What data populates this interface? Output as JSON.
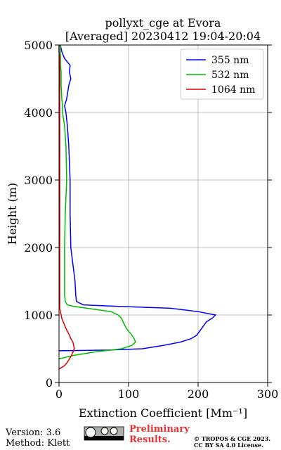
{
  "chart_data": {
    "type": "line",
    "title": "pollyxt_cge at Evora",
    "subtitle": "[Averaged] 20230412 19:04-20:04",
    "xlabel": "Extinction Coefficient [Mm⁻¹]",
    "ylabel": "Height (m)",
    "y": [
      200,
      250,
      300,
      350,
      400,
      450,
      470,
      480,
      500,
      550,
      600,
      650,
      700,
      800,
      900,
      950,
      1000,
      1050,
      1100,
      1130,
      1150,
      1200,
      1300,
      1500,
      2000,
      2500,
      3000,
      3500,
      3800,
      4000,
      4100,
      4200,
      4400,
      4500,
      4600,
      4700,
      4800,
      4900,
      5000
    ],
    "series": [
      {
        "name": "355 nm",
        "color": "#0000ff",
        "values": [
          null,
          null,
          null,
          null,
          null,
          null,
          0,
          70,
          120,
          150,
          175,
          190,
          198,
          205,
          212,
          220,
          225,
          200,
          160,
          80,
          35,
          25,
          24,
          23,
          17,
          16,
          16,
          14,
          12,
          10,
          8,
          11,
          14,
          17,
          15,
          16,
          8,
          4,
          2
        ]
      },
      {
        "name": "532 nm",
        "color": "#00bb00",
        "values": [
          null,
          null,
          null,
          0,
          20,
          50,
          65,
          75,
          90,
          105,
          110,
          108,
          105,
          97,
          92,
          90,
          85,
          75,
          40,
          20,
          12,
          9,
          8,
          8,
          8,
          9,
          11,
          10,
          8,
          5,
          5,
          4,
          3,
          3,
          3,
          2,
          2,
          2,
          2
        ]
      },
      {
        "name": "1064 nm",
        "color": "#dd0000",
        "values": [
          0,
          8,
          12,
          15,
          18,
          20,
          21,
          21,
          22,
          21,
          20,
          17,
          15,
          10,
          6,
          4,
          3,
          2,
          1,
          1,
          1,
          1,
          1,
          1,
          1,
          1,
          1,
          1,
          1,
          1,
          1,
          1,
          1,
          1,
          1,
          1,
          1,
          0,
          0
        ]
      }
    ],
    "xlim": [
      0,
      300
    ],
    "xticks": [
      0,
      100,
      200,
      300
    ],
    "ylim": [
      0,
      5000
    ],
    "yticks": [
      0,
      1000,
      2000,
      3000,
      4000,
      5000
    ],
    "grid": true,
    "legend": "upper right"
  },
  "footer": {
    "version": "Version: 3.6",
    "method": "Method: Klett",
    "preliminary_1": "Preliminary",
    "preliminary_2": "Results.",
    "copyright": "© TROPOS & CGE 2023.",
    "license": "CC BY SA 4.0 License."
  }
}
